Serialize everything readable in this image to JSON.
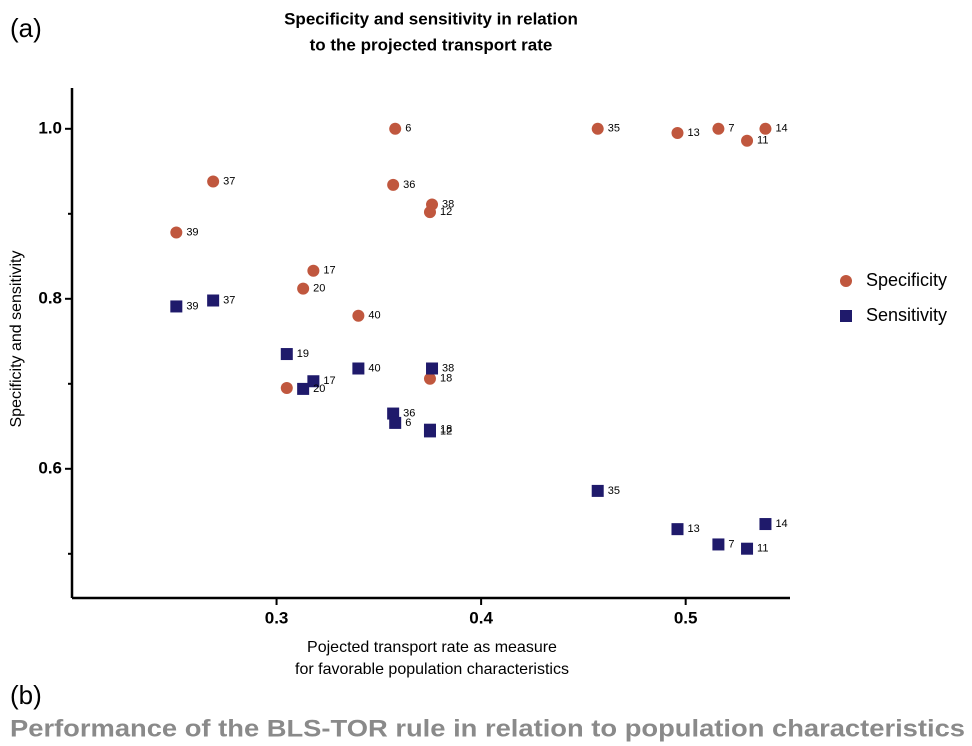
{
  "panel_a": "(a)",
  "panel_b": "(b)",
  "caption": "Performance of the BLS-TOR rule in relation to population characteristics",
  "chart_data": {
    "type": "scatter",
    "title": [
      "Specificity and sensitivity in relation",
      "to the projected transport rate"
    ],
    "x_label": [
      "Pojected transport rate as measure",
      "for favorable population characteristics"
    ],
    "y_label": "Specificity and sensitivity",
    "xlim": [
      0.2,
      0.551
    ],
    "ylim": [
      0.448,
      1.048
    ],
    "xticks": [
      0.3,
      0.4,
      0.5
    ],
    "yticks": [
      {
        "value": 0.6,
        "label": "0.6"
      },
      {
        "value": 0.8,
        "label": "0.8"
      },
      {
        "value": 1.0,
        "label": "1.0"
      }
    ],
    "yticks_minor": [
      0.5,
      0.7,
      0.9
    ],
    "legend": "right",
    "series": [
      {
        "name": "Specificity",
        "color": "#c0573e",
        "marker": "circle",
        "labels": [
          "6",
          "37",
          "36",
          "38",
          "12",
          "39",
          "17",
          "20",
          "40",
          "18",
          "19",
          "35",
          "13",
          "7",
          "14",
          "11"
        ],
        "x": [
          0.358,
          0.269,
          0.357,
          0.376,
          0.375,
          0.251,
          0.318,
          0.313,
          0.34,
          0.375,
          0.305,
          0.457,
          0.496,
          0.516,
          0.539,
          0.53
        ],
        "values": [
          1.0,
          0.938,
          0.934,
          0.911,
          0.902,
          0.878,
          0.833,
          0.812,
          0.78,
          0.706,
          0.695,
          1.0,
          0.995,
          1.0,
          1.0,
          0.986
        ]
      },
      {
        "name": "Sensitivity",
        "color": "#1f1a6b",
        "marker": "square",
        "labels": [
          "39",
          "37",
          "19",
          "17",
          "20",
          "40",
          "38",
          "36",
          "6",
          "18",
          "12",
          "35",
          "13",
          "7",
          "11",
          "14"
        ],
        "x": [
          0.251,
          0.269,
          0.305,
          0.318,
          0.313,
          0.34,
          0.376,
          0.357,
          0.358,
          0.375,
          0.375,
          0.457,
          0.496,
          0.516,
          0.53,
          0.539
        ],
        "values": [
          0.791,
          0.798,
          0.735,
          0.703,
          0.694,
          0.718,
          0.718,
          0.665,
          0.654,
          0.646,
          0.644,
          0.574,
          0.529,
          0.511,
          0.506,
          0.535
        ]
      }
    ]
  }
}
